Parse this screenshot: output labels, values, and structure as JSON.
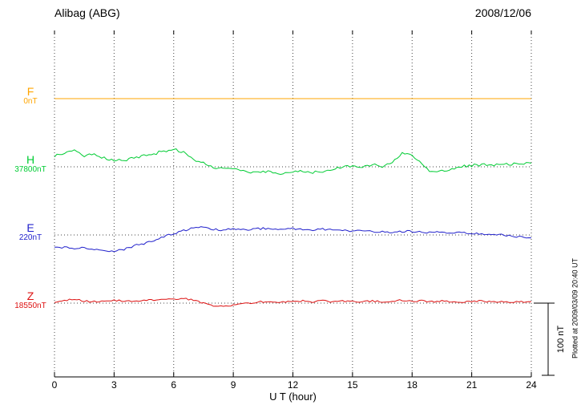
{
  "chart_data": {
    "type": "line",
    "title": "Alibag (ABG)",
    "date": "2008/12/06",
    "xlabel": "U T (hour)",
    "xlim": [
      0,
      24
    ],
    "x_ticks": [
      "0",
      "3",
      "6",
      "9",
      "12",
      "15",
      "18",
      "21",
      "24"
    ],
    "x_step_hours": 0.5,
    "grid": "dotted",
    "legend_position": "left",
    "scale_bar_label": "100 nT",
    "scale_bar_nT": 100,
    "footnote": "Plotted at 2009/03/09 20:40 UT",
    "series": [
      {
        "name": "F",
        "baseline_label": "0nT",
        "color": "#FFA500",
        "offsets_nT": [
          0,
          0,
          0,
          0,
          0,
          0,
          0,
          0,
          0,
          0,
          0,
          0,
          0,
          0,
          0,
          0,
          0,
          0,
          0,
          0,
          0,
          0,
          0,
          0,
          0,
          0,
          0,
          0,
          0,
          0,
          0,
          0,
          0,
          0,
          0,
          0,
          0,
          0,
          0,
          0,
          0,
          0,
          0,
          0,
          0,
          0,
          0,
          0,
          0
        ]
      },
      {
        "name": "H",
        "baseline_label": "37800nT",
        "color": "#00CC33",
        "offsets_nT": [
          15,
          20,
          25,
          15,
          18,
          12,
          10,
          8,
          12,
          15,
          18,
          22,
          25,
          20,
          10,
          5,
          0,
          -3,
          -2,
          -5,
          -8,
          -6,
          -8,
          -10,
          -8,
          -5,
          -8,
          -6,
          -4,
          0,
          2,
          0,
          3,
          0,
          5,
          20,
          15,
          5,
          -8,
          -5,
          -3,
          0,
          2,
          3,
          2,
          3,
          4,
          5,
          5
        ]
      },
      {
        "name": "E",
        "baseline_label": "220nT",
        "color": "#2222CC",
        "offsets_nT": [
          -18,
          -17,
          -19,
          -18,
          -20,
          -22,
          -22,
          -20,
          -15,
          -12,
          -8,
          -2,
          2,
          6,
          10,
          11,
          8,
          7,
          8,
          7,
          8,
          9,
          8,
          8,
          9,
          8,
          7,
          8,
          7,
          6,
          6,
          5,
          5,
          4,
          4,
          5,
          5,
          4,
          3,
          4,
          3,
          3,
          2,
          2,
          1,
          0,
          -1,
          -3,
          -4
        ]
      },
      {
        "name": "Z",
        "baseline_label": "18550nT",
        "color": "#DD1111",
        "offsets_nT": [
          0,
          3,
          6,
          3,
          2,
          2,
          4,
          3,
          3,
          4,
          4,
          5,
          5,
          7,
          4,
          0,
          -4,
          -5,
          -3,
          -1,
          1,
          2,
          1,
          2,
          2,
          3,
          2,
          3,
          2,
          3,
          2,
          2,
          3,
          2,
          3,
          4,
          3,
          3,
          2,
          3,
          2,
          2,
          2,
          3,
          2,
          2,
          2,
          2,
          2
        ]
      }
    ]
  }
}
